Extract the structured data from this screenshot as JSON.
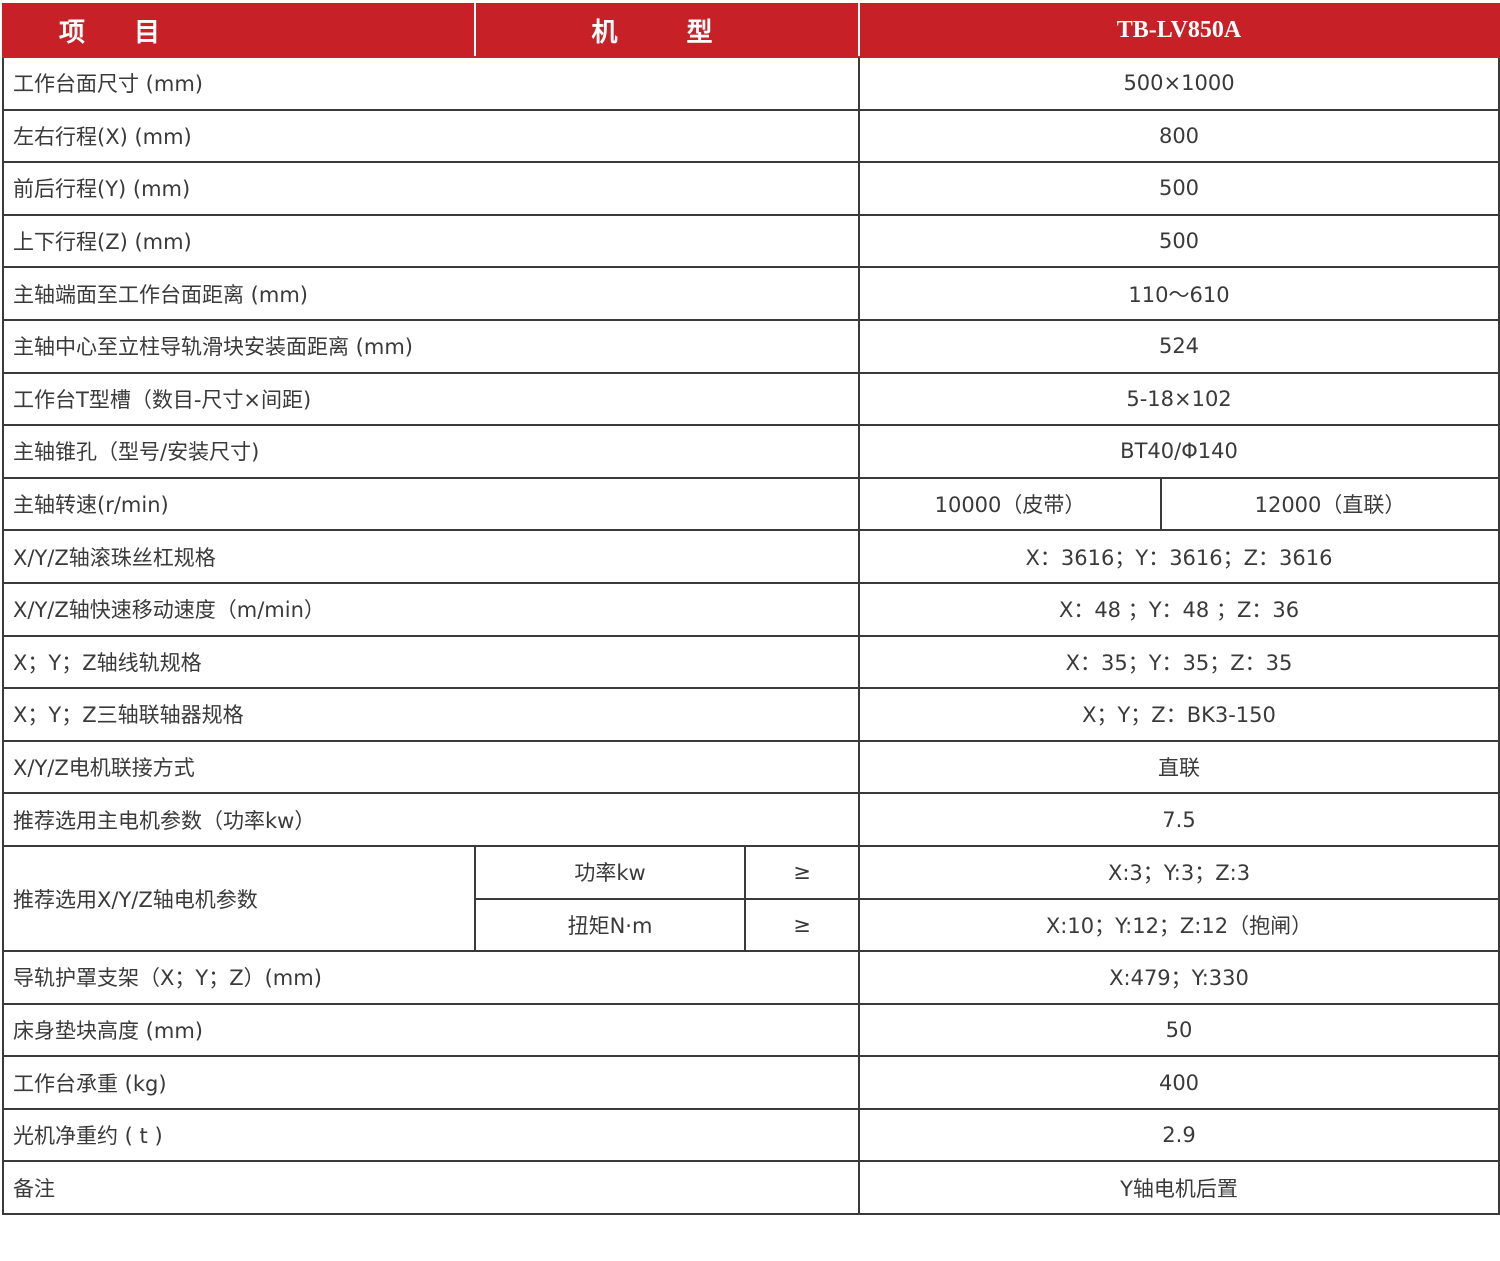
{
  "header": {
    "item": "项 目",
    "model_label": "机 型",
    "model": "TB-LV850A"
  },
  "accent_color": "#c72026",
  "rows_a": [
    {
      "label": "工作台面尺寸 (mm)",
      "value": "500×1000"
    },
    {
      "label": "左右行程(X) (mm)",
      "value": "800"
    },
    {
      "label": "前后行程(Y) (mm)",
      "value": "500"
    },
    {
      "label": "上下行程(Z) (mm)",
      "value": "500"
    },
    {
      "label": "主轴端面至工作台面距离 (mm)",
      "value": "110～610"
    },
    {
      "label": "主轴中心至立柱导轨滑块安装面距离 (mm)",
      "value": "524"
    },
    {
      "label": "工作台T型槽（数目-尺寸×间距)",
      "value": "5-18×102"
    },
    {
      "label": "主轴锥孔（型号/安装尺寸)",
      "value": "BT40/Φ140"
    }
  ],
  "spindle_speed": {
    "label": "主轴转速(r/min)",
    "value1": "10000（皮带）",
    "value2": "12000（直联）"
  },
  "rows_b": [
    {
      "label": "X/Y/Z轴滚珠丝杠规格",
      "value": "X：3616；Y：3616；Z：3616"
    },
    {
      "label": "X/Y/Z轴快速移动速度（m/min）",
      "value": "X：48 ；Y：48 ；Z：36"
    },
    {
      "label": "X；Y；Z轴线轨规格",
      "value": "X：35；Y：35；Z：35"
    },
    {
      "label": "X；Y；Z三轴联轴器规格",
      "value": "X；Y；Z：BK3-150"
    },
    {
      "label": "X/Y/Z电机联接方式",
      "value": "直联"
    },
    {
      "label": "推荐选用主电机参数（功率kw）",
      "value": "7.5"
    }
  ],
  "motor": {
    "label": "推荐选用X/Y/Z轴电机参数",
    "power_label": "功率kw",
    "power_op": "≥",
    "power_value": "X:3；Y:3；Z:3",
    "torque_label": "扭矩N·m",
    "torque_op": "≥",
    "torque_value": "X:10；Y:12；Z:12（抱闸）"
  },
  "rows_c": [
    {
      "label": "导轨护罩支架（X；Y；Z）(mm)",
      "value": "X:479；Y:330"
    },
    {
      "label": "床身垫块高度 (mm)",
      "value": "50"
    },
    {
      "label": "工作台承重 (kg)",
      "value": "400"
    },
    {
      "label": "光机净重约 ( t )",
      "value": "2.9"
    },
    {
      "label": "备注",
      "value": "Y轴电机后置"
    }
  ]
}
